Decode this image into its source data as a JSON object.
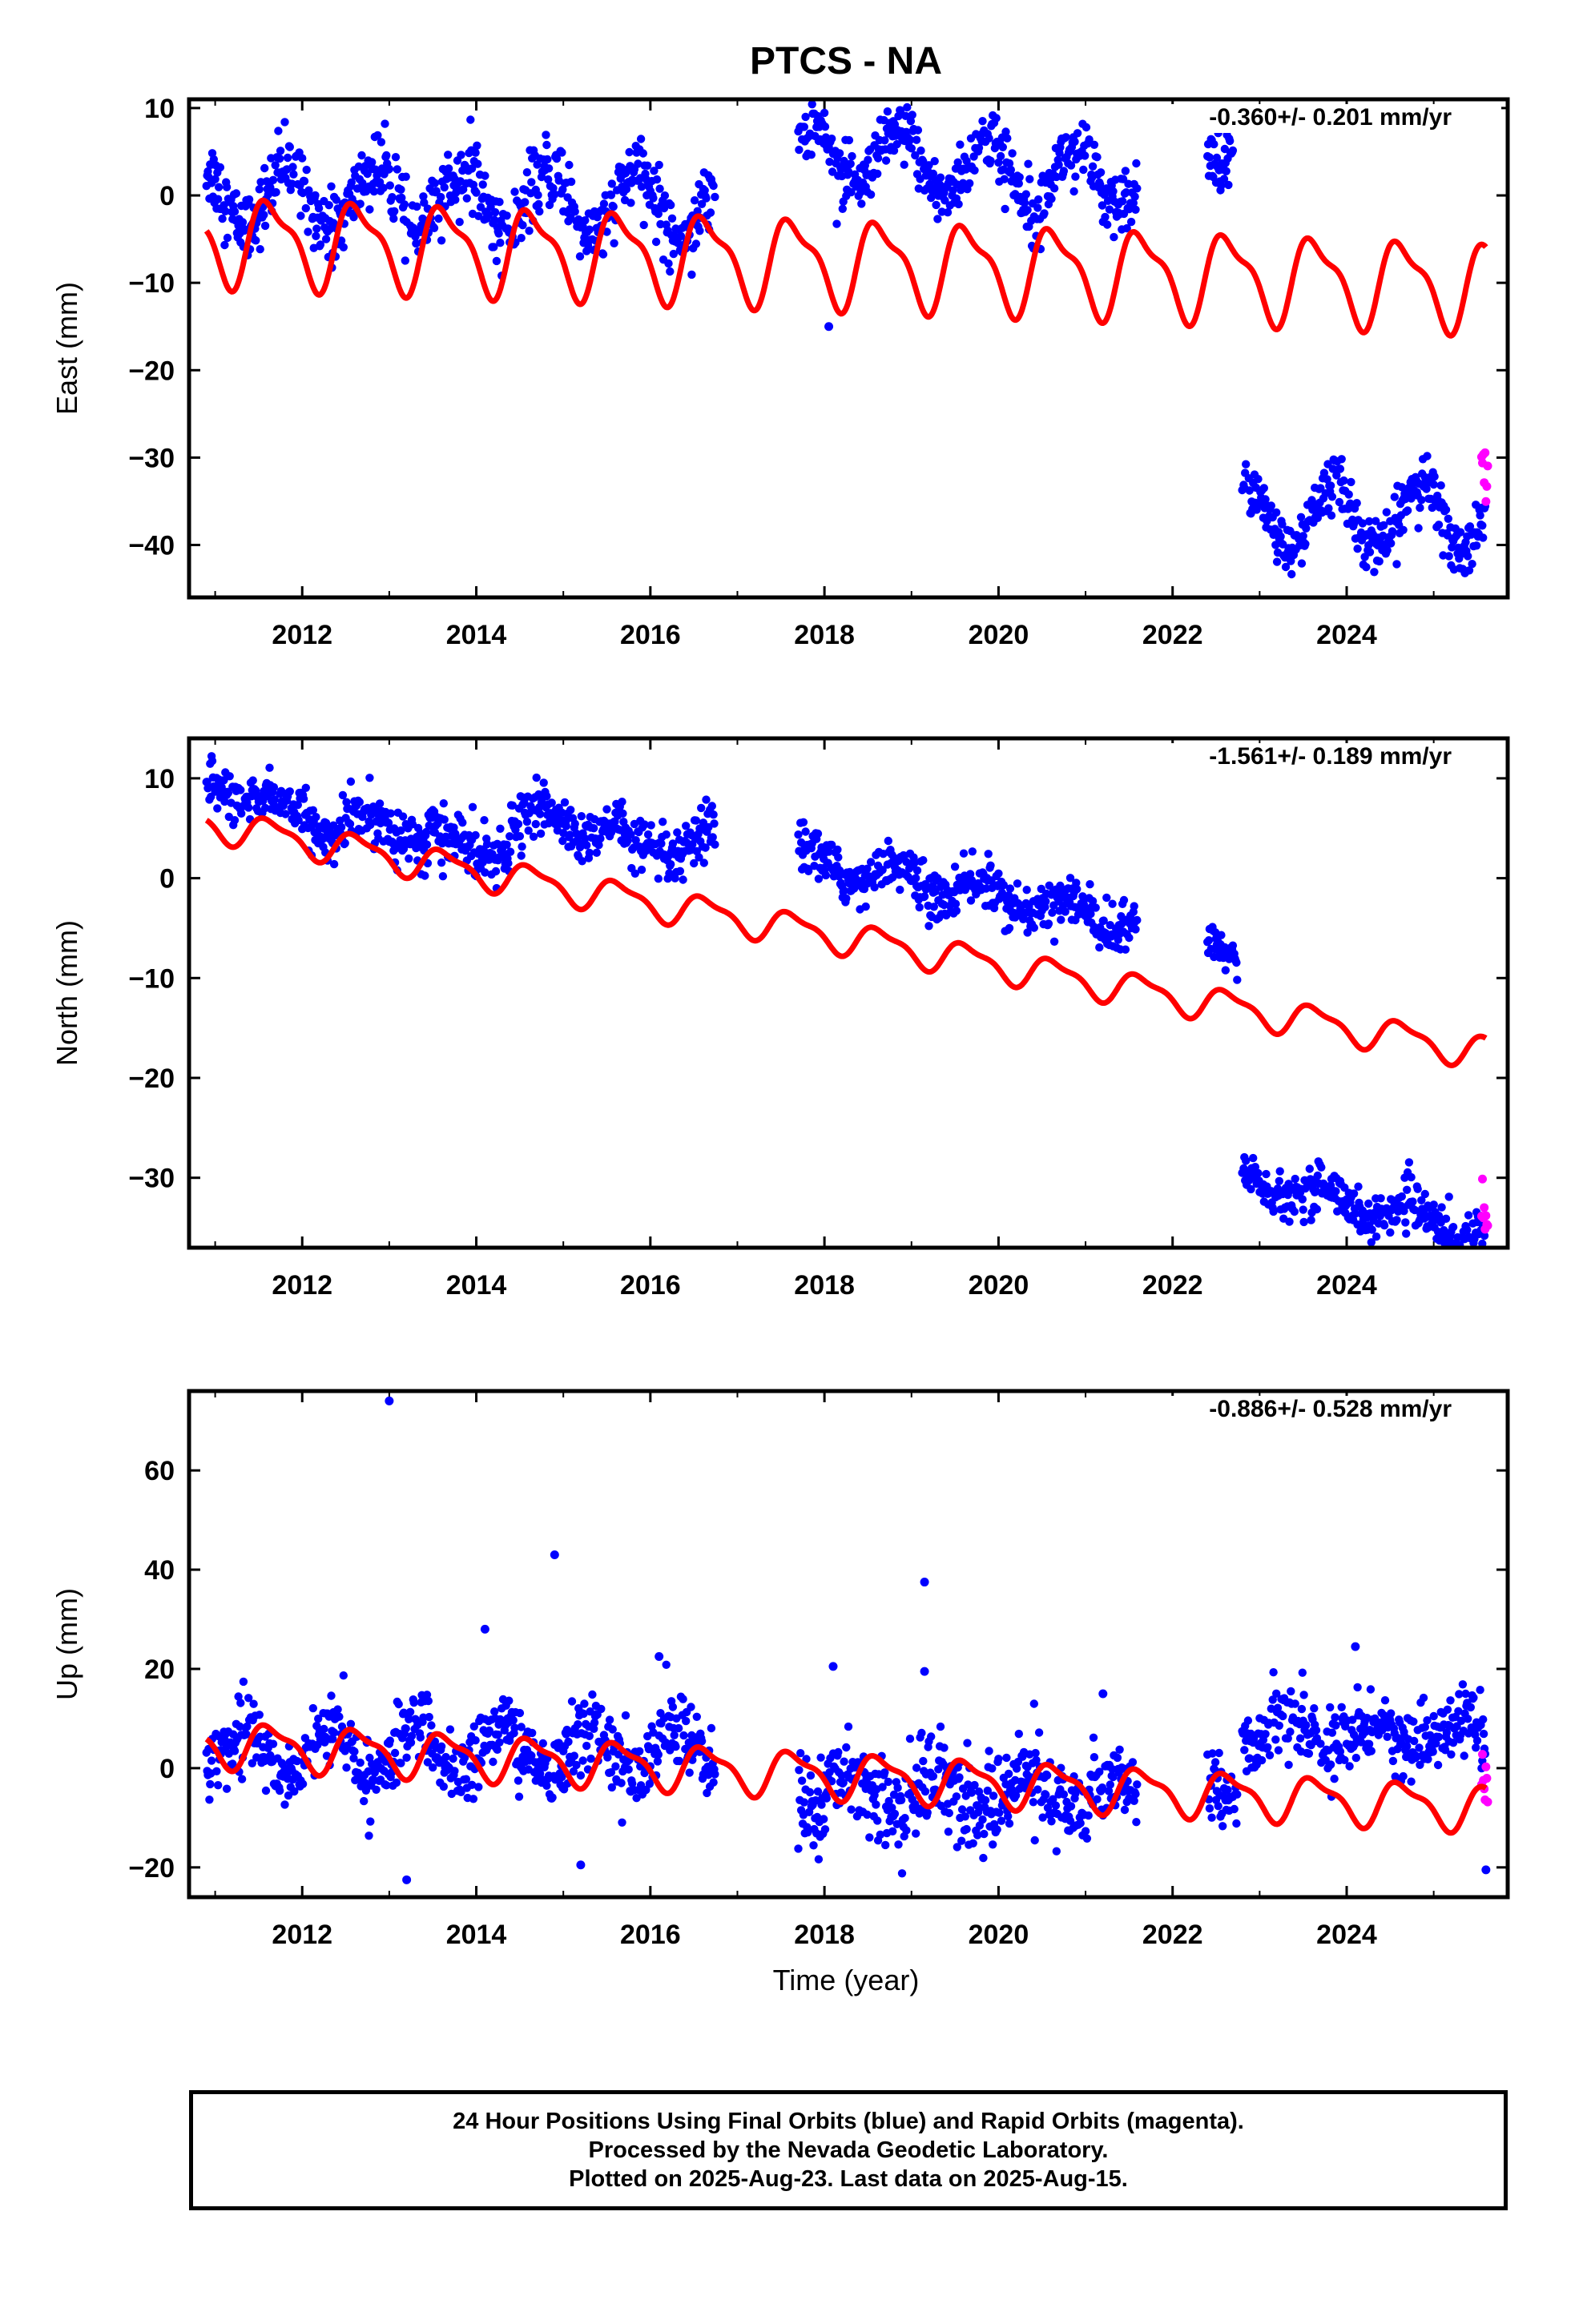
{
  "title": "PTCS - NA",
  "xlabel": "Time (year)",
  "footer": {
    "line1": "24 Hour Positions Using Final Orbits (blue) and Rapid Orbits (magenta).",
    "line2": "Processed by the Nevada Geodetic Laboratory.",
    "line3": "Plotted on 2025-Aug-23. Last data on 2025-Aug-15."
  },
  "colors": {
    "final": "#0000ff",
    "rapid": "#ff00ff",
    "model": "#ff0000"
  },
  "chart_data": [
    {
      "type": "scatter",
      "component": "east",
      "ylabel": "East (mm)",
      "rate": "-0.360+/- 0.201 mm/yr",
      "xlim": [
        2010.7,
        2025.85
      ],
      "ylim": [
        -46,
        11
      ],
      "xticks": [
        2012,
        2014,
        2016,
        2018,
        2020,
        2022,
        2024
      ],
      "yticks": [
        10,
        0,
        -10,
        -20,
        -30,
        -40
      ],
      "model": {
        "mean": -5,
        "trend": -0.36,
        "amp": 4.6,
        "t0": 2010.9
      },
      "segments": [
        {
          "t0": 2010.9,
          "t1": 2016.75,
          "offset": 0,
          "trend": -0.2,
          "amp": 3.4,
          "phase": 0.59,
          "noise": 2.0
        },
        {
          "t0": 2017.7,
          "t1": 2021.6,
          "offset": 4.8,
          "trend": -0.85,
          "amp": 3.3,
          "phase": 0.62,
          "noise": 1.8
        },
        {
          "t0": 2022.4,
          "t1": 2022.7,
          "offset": 4.5,
          "trend": 0,
          "amp": 1.0,
          "phase": 0.6,
          "noise": 1.6
        },
        {
          "t0": 2022.8,
          "t1": 2025.6,
          "offset": -36.8,
          "trend": 0,
          "amp": 3.8,
          "phase": 0.6,
          "noise": 1.6
        }
      ],
      "rapid": {
        "t0": 2025.55,
        "t1": 2025.62,
        "mean": -30.5,
        "spread": 1.6
      },
      "outliers": [
        {
          "t": 2018.05,
          "y": -15
        }
      ]
    },
    {
      "type": "scatter",
      "component": "north",
      "ylabel": "North (mm)",
      "rate": "-1.561+/- 0.189 mm/yr",
      "xlim": [
        2010.7,
        2025.85
      ],
      "ylim": [
        -37,
        14
      ],
      "xticks": [
        2012,
        2014,
        2016,
        2018,
        2020,
        2022,
        2024
      ],
      "yticks": [
        10,
        0,
        -10,
        -20,
        -30
      ],
      "model": {
        "mean": 5.5,
        "trend": -1.561,
        "amp": 1.5,
        "t0": 2010.9
      },
      "segments": [
        {
          "t0": 2010.9,
          "t1": 2012.5,
          "offset": 10.0,
          "trend": -3.5,
          "amp": 1.0,
          "phase": 0.5,
          "noise": 1.2
        },
        {
          "t0": 2012.5,
          "t1": 2013.6,
          "offset": 5.5,
          "trend": -1.0,
          "amp": 1.2,
          "phase": 0.5,
          "noise": 1.4
        },
        {
          "t0": 2013.6,
          "t1": 2014.4,
          "offset": 3.0,
          "trend": 0,
          "amp": 1.0,
          "phase": 0.5,
          "noise": 1.3
        },
        {
          "t0": 2014.4,
          "t1": 2015.7,
          "offset": 6.0,
          "trend": -1.0,
          "amp": 1.3,
          "phase": 0.5,
          "noise": 1.2
        },
        {
          "t0": 2015.7,
          "t1": 2016.75,
          "offset": 2.5,
          "trend": 1.0,
          "amp": 1.3,
          "phase": 0.5,
          "noise": 1.3
        },
        {
          "t0": 2017.7,
          "t1": 2021.6,
          "offset": 2.0,
          "trend": -1.7,
          "amp": 1.3,
          "phase": 0.55,
          "noise": 1.2
        },
        {
          "t0": 2022.4,
          "t1": 2022.75,
          "offset": -6.0,
          "trend": -8.0,
          "amp": 0,
          "phase": 0.5,
          "noise": 1.0
        },
        {
          "t0": 2022.8,
          "t1": 2025.6,
          "offset": -30.0,
          "trend": -2.0,
          "amp": 1.2,
          "phase": 0.5,
          "noise": 1.1
        }
      ],
      "rapid": {
        "t0": 2025.55,
        "t1": 2025.62,
        "mean": -33.5,
        "spread": 1.2
      },
      "outliers": []
    },
    {
      "type": "scatter",
      "component": "up",
      "ylabel": "Up (mm)",
      "rate": "-0.886+/- 0.528 mm/yr",
      "xlim": [
        2010.7,
        2025.85
      ],
      "ylim": [
        -26,
        76
      ],
      "xticks": [
        2012,
        2014,
        2016,
        2018,
        2020,
        2022,
        2024
      ],
      "yticks": [
        60,
        40,
        20,
        0,
        -20
      ],
      "model": {
        "mean": 5,
        "trend": -0.886,
        "amp": 4.2,
        "t0": 2010.9
      },
      "segments": [
        {
          "t0": 2010.9,
          "t1": 2016.75,
          "offset": 3.5,
          "trend": 0,
          "amp": 5.0,
          "phase": 0.05,
          "noise": 3.6
        },
        {
          "t0": 2017.7,
          "t1": 2021.6,
          "offset": -5.0,
          "trend": 0,
          "amp": 4.0,
          "phase": 0.05,
          "noise": 4.5
        },
        {
          "t0": 2022.4,
          "t1": 2022.75,
          "offset": -4.0,
          "trend": 0,
          "amp": 1.0,
          "phase": 0.05,
          "noise": 3.0
        },
        {
          "t0": 2022.8,
          "t1": 2025.6,
          "offset": 7.0,
          "trend": 0,
          "amp": 3.0,
          "phase": 0.05,
          "noise": 3.5
        }
      ],
      "rapid": {
        "t0": 2025.55,
        "t1": 2025.62,
        "mean": -4,
        "spread": 3.0
      },
      "outliers": [
        {
          "t": 2013.0,
          "y": 74
        },
        {
          "t": 2014.9,
          "y": 43
        },
        {
          "t": 2014.1,
          "y": 28
        },
        {
          "t": 2019.15,
          "y": 37.5
        },
        {
          "t": 2019.15,
          "y": 19.5
        },
        {
          "t": 2024.1,
          "y": 24.5
        },
        {
          "t": 2016.1,
          "y": 22.5
        },
        {
          "t": 2013.2,
          "y": -22.5
        },
        {
          "t": 2015.2,
          "y": -19.5
        },
        {
          "t": 2018.1,
          "y": 20.5
        },
        {
          "t": 2025.6,
          "y": -20.5
        },
        {
          "t": 2021.2,
          "y": 15
        }
      ]
    }
  ]
}
